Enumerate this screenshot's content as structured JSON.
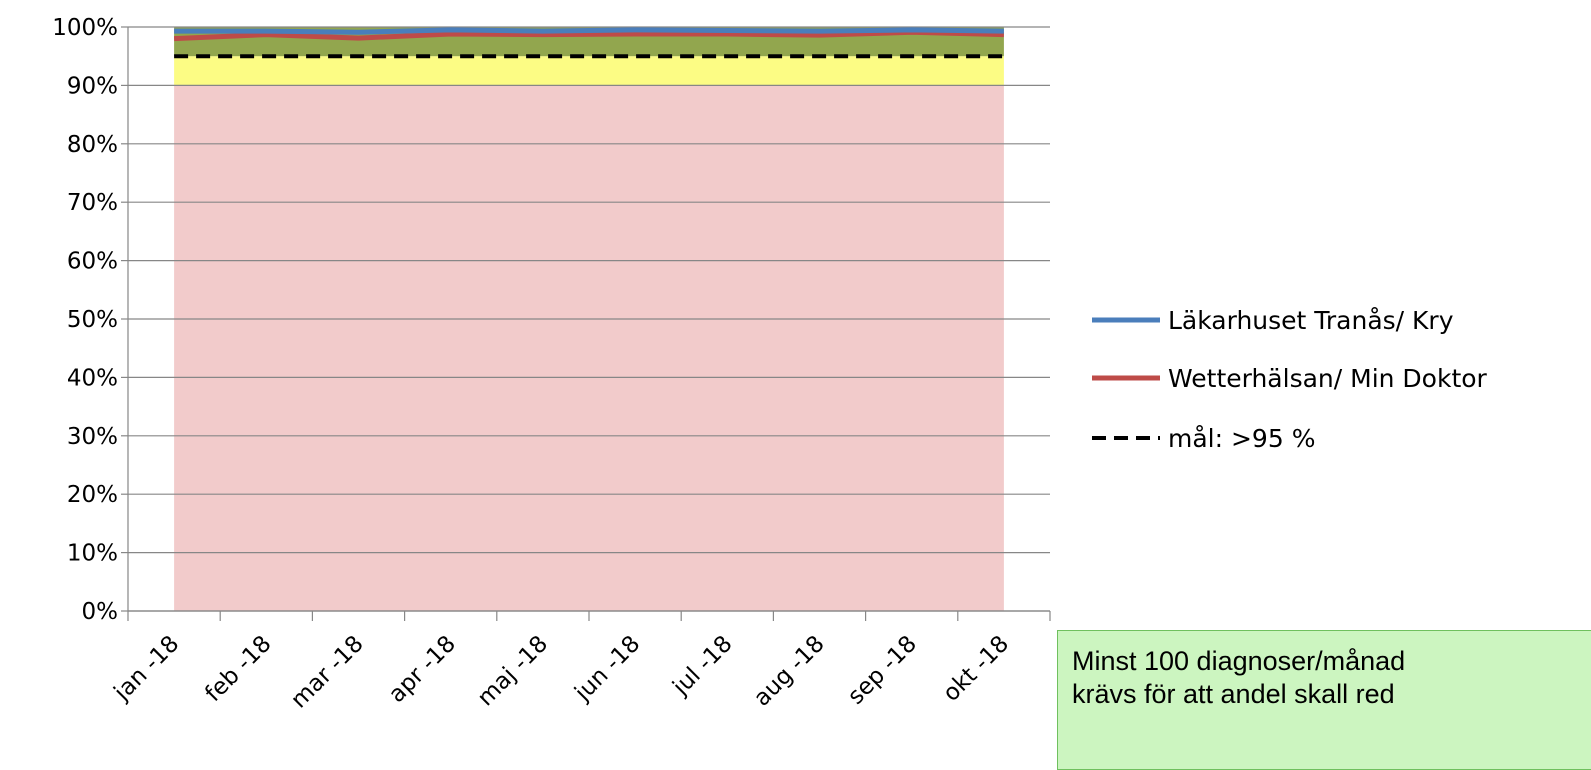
{
  "chart_data": {
    "type": "line",
    "title": "",
    "xlabel": "",
    "ylabel": "",
    "ylim": [
      0,
      1
    ],
    "y_ticks": [
      "0%",
      "10%",
      "20%",
      "30%",
      "40%",
      "50%",
      "60%",
      "70%",
      "80%",
      "90%",
      "100%"
    ],
    "categories": [
      "jan -18",
      "feb -18",
      "mar -18",
      "apr -18",
      "maj -18",
      "jun -18",
      "jul -18",
      "aug -18",
      "sep -18",
      "okt -18"
    ],
    "series": [
      {
        "name": "Läkarhuset Tranås/ Kry",
        "color": "#4a7ebb",
        "style": "solid",
        "values": [
          0.993,
          0.993,
          0.991,
          0.995,
          0.993,
          0.995,
          0.994,
          0.993,
          0.995,
          0.993
        ]
      },
      {
        "name": "Wetterhälsan/ Min Doktor",
        "color": "#be4b48",
        "style": "solid",
        "values": [
          0.98,
          0.987,
          0.981,
          0.988,
          0.987,
          0.988,
          0.988,
          0.986,
          0.991,
          0.987
        ]
      },
      {
        "name": "mål: >95 %",
        "color": "#000000",
        "style": "dashed",
        "values": [
          0.95,
          0.95,
          0.95,
          0.95,
          0.95,
          0.95,
          0.95,
          0.95,
          0.95,
          0.95
        ]
      }
    ],
    "bands": [
      {
        "from": 0.0,
        "to": 0.9,
        "color": "#f2cbcb"
      },
      {
        "from": 0.9,
        "to": 0.95,
        "color": "#fcfc84"
      },
      {
        "from": 0.95,
        "to": 1.0,
        "color": "#92a64e"
      }
    ],
    "gridlines": true,
    "legend_position": "right"
  },
  "note": {
    "line1": "Minst 100 diagnoser/månad",
    "line2": "krävs för att andel skall red"
  }
}
